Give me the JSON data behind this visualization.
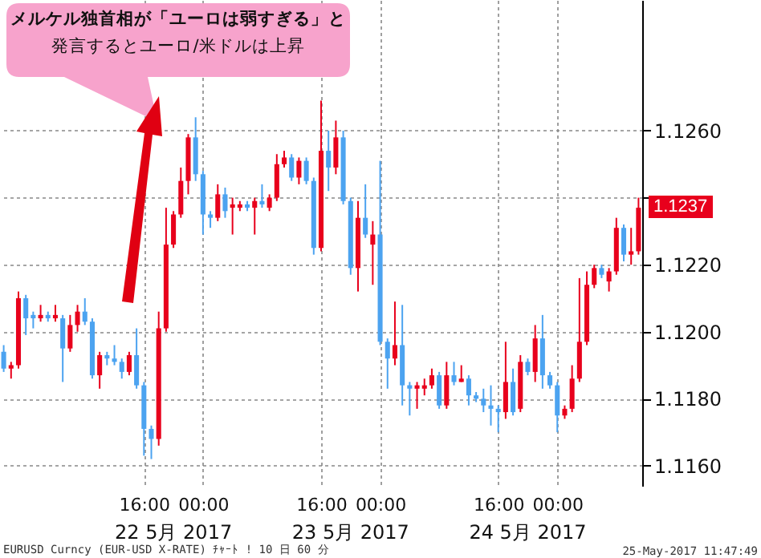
{
  "chart_data": {
    "type": "candlestick",
    "categories": [
      null,
      null,
      null,
      null,
      null,
      null,
      null,
      null,
      null,
      null,
      null,
      null,
      null,
      null,
      null,
      null,
      null,
      null,
      null,
      "16:00",
      null,
      null,
      null,
      null,
      null,
      null,
      null,
      "00:00",
      null,
      null,
      null,
      null,
      null,
      null,
      null,
      null,
      null,
      null,
      null,
      null,
      null,
      null,
      null,
      "16:00",
      null,
      null,
      null,
      null,
      null,
      null,
      null,
      "00:00",
      null,
      null,
      null,
      null,
      null,
      null,
      null,
      null,
      null,
      null,
      null,
      null,
      null,
      null,
      null,
      "16:00",
      null,
      null,
      null,
      null,
      null,
      null,
      null,
      "00:00",
      null,
      null,
      null,
      null,
      null,
      null,
      null,
      null,
      null,
      null,
      null
    ],
    "ohlc": [
      [
        1.1194,
        1.1196,
        1.1188,
        1.1189
      ],
      [
        1.1189,
        1.1191,
        1.1186,
        1.119
      ],
      [
        1.119,
        1.1212,
        1.1189,
        1.121
      ],
      [
        1.121,
        1.1211,
        1.1199,
        1.1204
      ],
      [
        1.1205,
        1.1206,
        1.1201,
        1.1204
      ],
      [
        1.1204,
        1.1208,
        1.1203,
        1.1205
      ],
      [
        1.1205,
        1.1206,
        1.1203,
        1.1204
      ],
      [
        1.1204,
        1.1208,
        1.1203,
        1.1205
      ],
      [
        1.1204,
        1.1205,
        1.1185,
        1.1195
      ],
      [
        1.1195,
        1.1205,
        1.1194,
        1.1202
      ],
      [
        1.1202,
        1.1208,
        1.12,
        1.1206
      ],
      [
        1.1206,
        1.121,
        1.1202,
        1.1203
      ],
      [
        1.1203,
        1.1204,
        1.1186,
        1.1187
      ],
      [
        1.1187,
        1.1194,
        1.1183,
        1.1193
      ],
      [
        1.1193,
        1.1194,
        1.119,
        1.1192
      ],
      [
        1.1192,
        1.1196,
        1.119,
        1.1191
      ],
      [
        1.1191,
        1.1192,
        1.1186,
        1.1188
      ],
      [
        1.1188,
        1.1194,
        1.1187,
        1.1193
      ],
      [
        1.1193,
        1.1201,
        1.1183,
        1.1184
      ],
      [
        1.1184,
        1.1185,
        1.1163,
        1.1171
      ],
      [
        1.1171,
        1.1172,
        1.1162,
        1.1168
      ],
      [
        1.1168,
        1.1206,
        1.1166,
        1.1201
      ],
      [
        1.1201,
        1.1237,
        1.12,
        1.1226
      ],
      [
        1.1226,
        1.1236,
        1.1225,
        1.1235
      ],
      [
        1.1235,
        1.1249,
        1.1234,
        1.1245
      ],
      [
        1.1245,
        1.1259,
        1.1241,
        1.1258
      ],
      [
        1.1258,
        1.1264,
        1.1245,
        1.1247
      ],
      [
        1.1247,
        1.1248,
        1.1229,
        1.1235
      ],
      [
        1.1235,
        1.1236,
        1.1231,
        1.1234
      ],
      [
        1.1234,
        1.1244,
        1.1233,
        1.1241
      ],
      [
        1.1241,
        1.1243,
        1.1234,
        1.1236
      ],
      [
        1.1237,
        1.124,
        1.1229,
        1.1238
      ],
      [
        1.1237,
        1.1239,
        1.1236,
        1.1238
      ],
      [
        1.1238,
        1.1239,
        1.1236,
        1.1237
      ],
      [
        1.1237,
        1.124,
        1.1229,
        1.1239
      ],
      [
        1.1239,
        1.1244,
        1.1237,
        1.1238
      ],
      [
        1.1237,
        1.1241,
        1.1236,
        1.124
      ],
      [
        1.124,
        1.1253,
        1.1239,
        1.125
      ],
      [
        1.125,
        1.1254,
        1.1249,
        1.1252
      ],
      [
        1.1252,
        1.1253,
        1.1245,
        1.1246
      ],
      [
        1.1246,
        1.1252,
        1.1244,
        1.1251
      ],
      [
        1.1251,
        1.1252,
        1.1244,
        1.1245
      ],
      [
        1.1245,
        1.1246,
        1.1223,
        1.1225
      ],
      [
        1.1225,
        1.1269,
        1.1224,
        1.1254
      ],
      [
        1.1254,
        1.126,
        1.1242,
        1.1249
      ],
      [
        1.1249,
        1.1263,
        1.1247,
        1.1258
      ],
      [
        1.1258,
        1.126,
        1.1238,
        1.1239
      ],
      [
        1.1239,
        1.124,
        1.1217,
        1.1219
      ],
      [
        1.1219,
        1.1239,
        1.1212,
        1.1234
      ],
      [
        1.1234,
        1.1244,
        1.1228,
        1.1229
      ],
      [
        1.1226,
        1.1233,
        1.1214,
        1.1229
      ],
      [
        1.1229,
        1.1251,
        1.1196,
        1.1197
      ],
      [
        1.1197,
        1.1198,
        1.1183,
        1.1192
      ],
      [
        1.1192,
        1.1209,
        1.119,
        1.1196
      ],
      [
        1.1196,
        1.1208,
        1.1178,
        1.1184
      ],
      [
        1.1184,
        1.1185,
        1.1175,
        1.1183
      ],
      [
        1.1183,
        1.1185,
        1.1177,
        1.1184
      ],
      [
        1.1183,
        1.1186,
        1.1181,
        1.1184
      ],
      [
        1.1184,
        1.1189,
        1.1183,
        1.1187
      ],
      [
        1.1187,
        1.1188,
        1.1177,
        1.1178
      ],
      [
        1.1178,
        1.1191,
        1.1177,
        1.1187
      ],
      [
        1.1187,
        1.1191,
        1.1184,
        1.1185
      ],
      [
        1.1185,
        1.119,
        1.1185,
        1.1186
      ],
      [
        1.1186,
        1.1187,
        1.1178,
        1.1181
      ],
      [
        1.1181,
        1.1182,
        1.1179,
        1.118
      ],
      [
        1.118,
        1.1183,
        1.1176,
        1.1178
      ],
      [
        1.1178,
        1.1184,
        1.1172,
        1.1177
      ],
      [
        1.1177,
        1.1178,
        1.117,
        1.1176
      ],
      [
        1.1176,
        1.1197,
        1.1174,
        1.1185
      ],
      [
        1.1185,
        1.1189,
        1.1175,
        1.1176
      ],
      [
        1.1177,
        1.1193,
        1.1176,
        1.1191
      ],
      [
        1.1191,
        1.1192,
        1.1187,
        1.1188
      ],
      [
        1.1188,
        1.1202,
        1.1185,
        1.1198
      ],
      [
        1.1198,
        1.1205,
        1.1183,
        1.1187
      ],
      [
        1.1187,
        1.1188,
        1.1183,
        1.1184
      ],
      [
        1.1184,
        1.1185,
        1.117,
        1.1175
      ],
      [
        1.1175,
        1.1178,
        1.1174,
        1.1177
      ],
      [
        1.1177,
        1.119,
        1.1176,
        1.1186
      ],
      [
        1.1186,
        1.1216,
        1.1185,
        1.1197
      ],
      [
        1.1197,
        1.1218,
        1.1196,
        1.1214
      ],
      [
        1.1214,
        1.122,
        1.1213,
        1.1219
      ],
      [
        1.1219,
        1.122,
        1.1216,
        1.1217
      ],
      [
        1.1215,
        1.1219,
        1.1212,
        1.1218
      ],
      [
        1.1218,
        1.1234,
        1.1217,
        1.1231
      ],
      [
        1.1231,
        1.1232,
        1.1221,
        1.1223
      ],
      [
        1.1223,
        1.1231,
        1.122,
        1.1224
      ],
      [
        1.1224,
        1.124,
        1.1223,
        1.1237
      ]
    ],
    "colors": [
      "#4ca3f0",
      "#e8001c",
      "#e8001c",
      "#4ca3f0",
      "#4ca3f0",
      "#e8001c",
      "#4ca3f0",
      "#e8001c",
      "#4ca3f0",
      "#e8001c",
      "#e8001c",
      "#4ca3f0",
      "#4ca3f0",
      "#e8001c",
      "#4ca3f0",
      "#4ca3f0",
      "#4ca3f0",
      "#e8001c",
      "#4ca3f0",
      "#4ca3f0",
      "#4ca3f0",
      "#e8001c",
      "#e8001c",
      "#e8001c",
      "#e8001c",
      "#e8001c",
      "#4ca3f0",
      "#4ca3f0",
      "#4ca3f0",
      "#e8001c",
      "#4ca3f0",
      "#e8001c",
      "#e8001c",
      "#4ca3f0",
      "#e8001c",
      "#4ca3f0",
      "#e8001c",
      "#e8001c",
      "#e8001c",
      "#4ca3f0",
      "#e8001c",
      "#4ca3f0",
      "#4ca3f0",
      "#e8001c",
      "#4ca3f0",
      "#e8001c",
      "#4ca3f0",
      "#4ca3f0",
      "#e8001c",
      "#4ca3f0",
      "#e8001c",
      "#4ca3f0",
      "#4ca3f0",
      "#e8001c",
      "#4ca3f0",
      "#4ca3f0",
      "#e8001c",
      "#e8001c",
      "#e8001c",
      "#4ca3f0",
      "#e8001c",
      "#4ca3f0",
      "#e8001c",
      "#4ca3f0",
      "#4ca3f0",
      "#4ca3f0",
      "#4ca3f0",
      "#4ca3f0",
      "#e8001c",
      "#4ca3f0",
      "#e8001c",
      "#4ca3f0",
      "#e8001c",
      "#4ca3f0",
      "#4ca3f0",
      "#4ca3f0",
      "#e8001c",
      "#e8001c",
      "#e8001c",
      "#e8001c",
      "#e8001c",
      "#4ca3f0",
      "#e8001c",
      "#e8001c",
      "#4ca3f0",
      "#e8001c",
      "#e8001c"
    ],
    "ylim": [
      1.1154,
      1.1299
    ],
    "yticks": [
      {
        "value": 1.116,
        "label": "1.1160"
      },
      {
        "value": 1.118,
        "label": "1.1180"
      },
      {
        "value": 1.12,
        "label": "1.1200"
      },
      {
        "value": 1.122,
        "label": "1.1220"
      },
      {
        "value": 1.124,
        "label": null
      },
      {
        "value": 1.126,
        "label": "1.1260"
      }
    ],
    "grid": true,
    "annotations": [
      "メルケル独首相が「ユーロは弱すぎる」と",
      "発言するとユーロ/米ドルは上昇",
      "22 5月 2017",
      "23 5月 2017",
      "24 5月 2017",
      "EURUSD Curncy (EUR-USD X-RATE) ﾁｬｰﾄ ! 10 日 60 分",
      "25-May-2017 11:47:49",
      "1.1237"
    ]
  }
}
